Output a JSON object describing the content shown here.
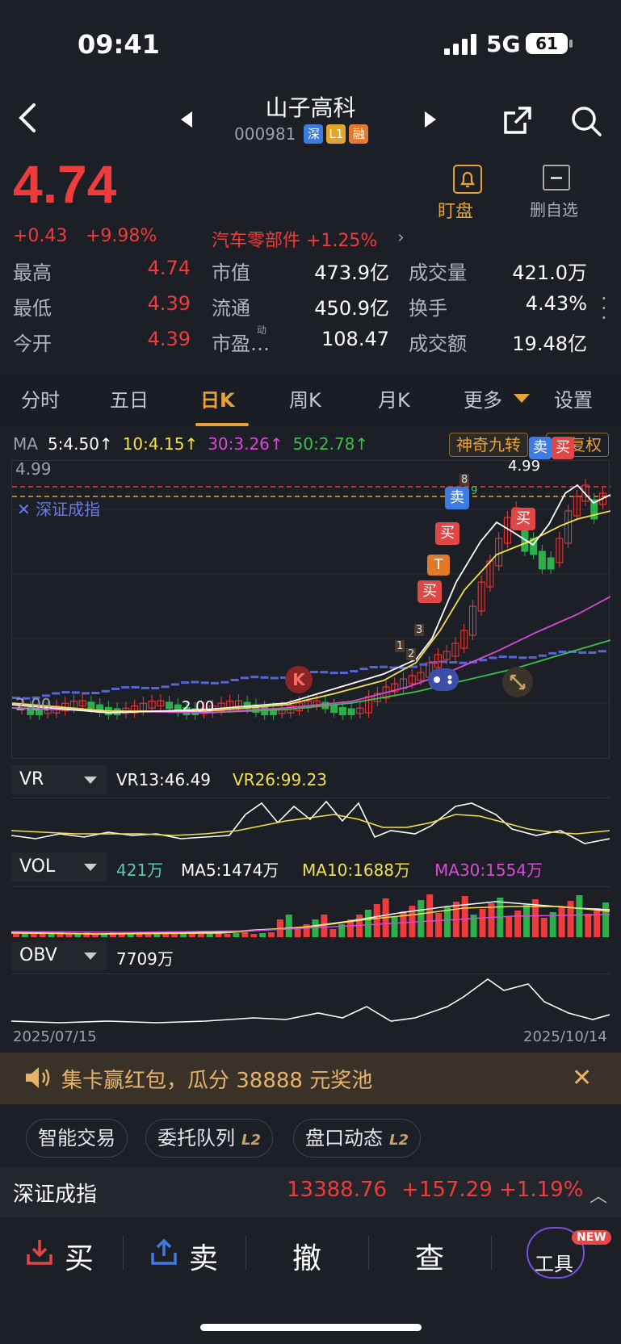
{
  "status": {
    "time": "09:41",
    "network": "5G",
    "battery": "61"
  },
  "header": {
    "name": "山子高科",
    "code": "000981",
    "tags": [
      "深",
      "L1",
      "融"
    ]
  },
  "quote": {
    "price": "4.74",
    "change": "+0.43",
    "change_pct": "+9.98%",
    "sector": "汽车零部件 +1.25%",
    "watch_label": "盯盘",
    "fav_label": "删自选"
  },
  "stats": [
    {
      "label": "最高",
      "value": "4.74",
      "color": "red"
    },
    {
      "label": "市值",
      "value": "473.9亿",
      "color": "white"
    },
    {
      "label": "成交量",
      "value": "421.0万",
      "color": "white"
    },
    {
      "label": "最低",
      "value": "4.39",
      "color": "red"
    },
    {
      "label": "流通",
      "value": "450.9亿",
      "color": "white"
    },
    {
      "label": "换手",
      "value": "4.43%",
      "color": "white"
    },
    {
      "label": "今开",
      "value": "4.39",
      "color": "red"
    },
    {
      "label": "市盈…",
      "value": "108.47",
      "color": "white",
      "sup": "动"
    },
    {
      "label": "成交额",
      "value": "19.48亿",
      "color": "white"
    }
  ],
  "tabs": [
    "分时",
    "五日",
    "日K",
    "周K",
    "月K",
    "更多",
    "设置"
  ],
  "ma": {
    "label": "MA",
    "items": [
      {
        "text": "5:4.50↑",
        "color": "#ffffff"
      },
      {
        "text": "10:4.15↑",
        "color": "#f4e04d"
      },
      {
        "text": "30:3.26↑",
        "color": "#d84ad8"
      },
      {
        "text": "50:2.78↑",
        "color": "#3cbf4a"
      }
    ],
    "btn_jiuzhuan": "神奇九转",
    "btn_fuquan": "前复权"
  },
  "kchart": {
    "high_left": "4.99",
    "high_right": "4.99",
    "low_left": "2.00",
    "low_mid": "2.00",
    "overlay": "深证成指",
    "signals": [
      "买",
      "卖",
      "买",
      "卖",
      "买",
      "T",
      "买",
      "K"
    ],
    "nine": [
      "1",
      "2",
      "3",
      "8",
      "9"
    ]
  },
  "vr": {
    "name": "VR",
    "v1": "VR13:46.49",
    "v2": "VR26:99.23"
  },
  "vol": {
    "name": "VOL",
    "v": "421万",
    "ma5": "MA5:1474万",
    "ma10": "MA10:1688万",
    "ma30": "MA30:1554万"
  },
  "obv": {
    "name": "OBV",
    "v": "7709万"
  },
  "dates": {
    "start": "2025/07/15",
    "end": "2025/10/14"
  },
  "promo": {
    "text": "集卡赢红包，瓜分 38888 元奖池"
  },
  "pills": [
    {
      "label": "智能交易",
      "badge": ""
    },
    {
      "label": "委托队列",
      "badge": "L2"
    },
    {
      "label": "盘口动态",
      "badge": "L2"
    }
  ],
  "index": {
    "name": "深证成指",
    "value": "13388.76",
    "change": "+157.29",
    "pct": "+1.19%"
  },
  "actions": {
    "buy": "买",
    "sell": "卖",
    "cancel": "撤",
    "query": "查",
    "tools": "工具",
    "new": "NEW"
  }
}
